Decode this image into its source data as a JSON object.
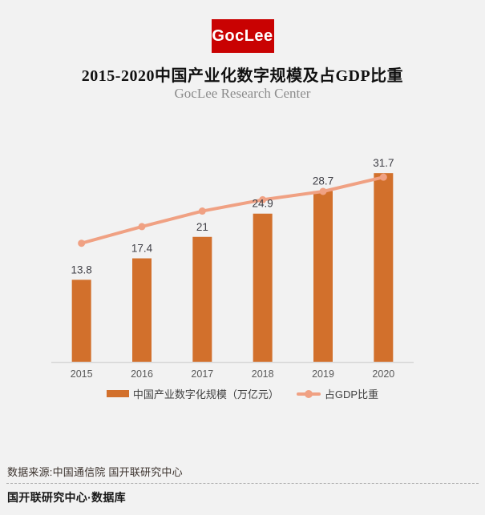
{
  "logo": {
    "text": "GocLee",
    "bg_color": "#c90202",
    "text_color": "#ffffff"
  },
  "header": {
    "title": "2015-2020中国产业化数字规模及占GDP比重",
    "subtitle": "GocLee Research Center"
  },
  "chart_data": {
    "type": "bar+line",
    "categories": [
      "2015",
      "2016",
      "2017",
      "2018",
      "2019",
      "2020"
    ],
    "series": [
      {
        "name": "中国产业数字化规模（万亿元）",
        "type": "bar",
        "color": "#d2702c",
        "values": [
          13.8,
          17.4,
          21,
          24.9,
          28.7,
          31.7
        ],
        "labels": [
          "13.8",
          "17.4",
          "21",
          "24.9",
          "28.7",
          "31.7"
        ]
      },
      {
        "name": "占GDP比重",
        "type": "line",
        "color": "#f0a183",
        "values_pct_estimated": [
          27.5,
          30.3,
          32.9,
          34.8,
          36.2,
          38.6
        ],
        "data_labels_shown": false
      }
    ],
    "title": "2015-2020中国产业化数字规模及占GDP比重",
    "xlabel": "",
    "ylabel": "",
    "y_axis_labels_shown": false,
    "grid": false,
    "legend_position": "bottom",
    "axis_line_color": "#d9d9d9",
    "value_label_color": "#3f3f46",
    "tick_label_color": "#595959"
  },
  "legend": {
    "bar_label": "中国产业数字化规模（万亿元）",
    "line_label": "占GDP比重"
  },
  "footer": {
    "source": "数据来源:中国通信院 国开联研究中心",
    "brand": "国开联研究中心·数据库"
  }
}
